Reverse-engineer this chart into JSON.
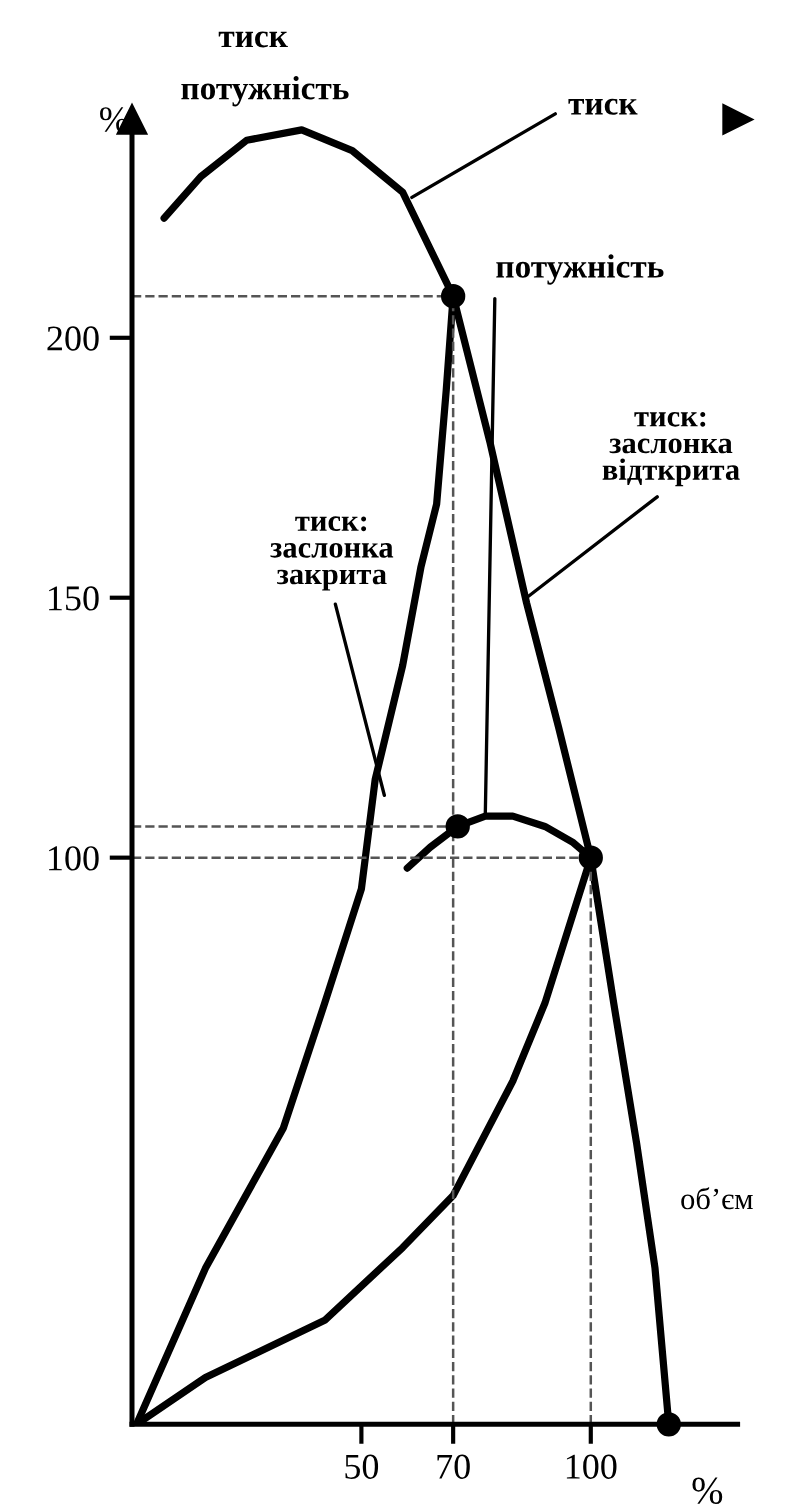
{
  "chart_data": {
    "type": "line",
    "xlabel": "%",
    "ylabel": "%",
    "xlim": [
      0,
      132
    ],
    "ylim": [
      -9,
      242
    ],
    "xticks": [
      50,
      70,
      100
    ],
    "yticks": [
      100,
      150,
      200
    ],
    "grid": false,
    "legend": false,
    "marker": "none",
    "line_style": "solid",
    "series": [
      {
        "color": "#000000",
        "x": [
          7,
          15,
          25,
          37,
          48,
          59,
          70,
          78,
          86,
          93,
          100,
          105,
          110,
          114,
          117
        ],
        "values": [
          223,
          231,
          238,
          240,
          236,
          228,
          208,
          180,
          149,
          125,
          100,
          72,
          45,
          21,
          -9
        ]
      },
      {
        "color": "#000000",
        "x": [
          1,
          16,
          33,
          42,
          50,
          53,
          59,
          63,
          66.4,
          68.5,
          70
        ],
        "values": [
          -9,
          21,
          48,
          72,
          94,
          115,
          137,
          156,
          168,
          190,
          208
        ]
      },
      {
        "color": "#000000",
        "x": [
          1,
          16,
          42,
          59,
          70,
          83,
          90,
          100
        ],
        "values": [
          -9,
          0,
          11,
          25,
          35,
          57,
          72,
          100
        ]
      },
      {
        "color": "#000000",
        "x": [
          60,
          65,
          71,
          77,
          83,
          90,
          96,
          100
        ],
        "values": [
          98,
          102,
          106,
          108,
          108,
          106,
          103,
          100
        ]
      },
      {
        "type": "scatter",
        "marker": "circle",
        "color": "#000000",
        "x": [
          70,
          71,
          100,
          117
        ],
        "values": [
          208,
          106,
          100,
          -9
        ]
      }
    ],
    "ref_lines": [
      {
        "axis": "y",
        "value": 208,
        "line_style": "dashed",
        "color": "#555555"
      },
      {
        "axis": "y",
        "value": 106,
        "line_style": "dashed",
        "color": "#555555"
      },
      {
        "axis": "y",
        "value": 100,
        "line_style": "dashed",
        "color": "#555555"
      },
      {
        "axis": "x",
        "value": 70,
        "line_style": "dashed",
        "color": "#555555"
      },
      {
        "axis": "x",
        "value": 100,
        "line_style": "dashed",
        "color": "#555555"
      }
    ],
    "annotations": [
      "тиск",
      "потужність",
      "об’єм",
      {
        "text": "тиск",
        "x": 61,
        "y": 227
      },
      {
        "text": "потужність",
        "x": 77,
        "y": 108
      },
      {
        "text": "тиск:\nзаслонка\nвідткрита",
        "x": 86,
        "y": 150
      },
      {
        "text": "тиск:\nзаслонка\nзакрита",
        "x": 55,
        "y": 112
      }
    ]
  }
}
